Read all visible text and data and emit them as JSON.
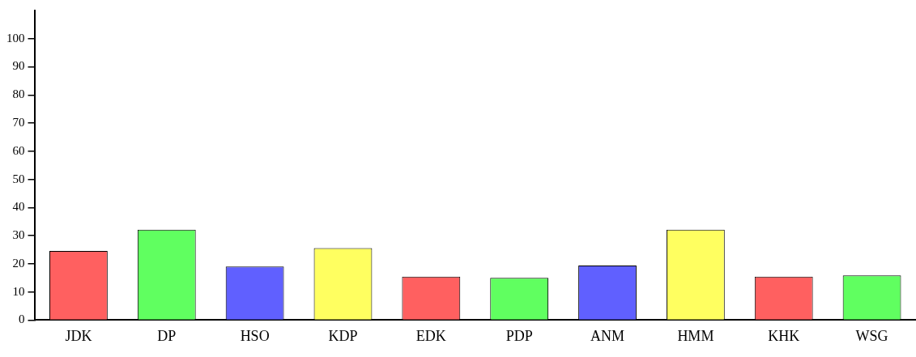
{
  "chart_data": {
    "type": "bar",
    "categories": [
      "JDK",
      "DP",
      "HSO",
      "KDP",
      "EDK",
      "PDP",
      "ANM",
      "HMM",
      "KHK",
      "WSG"
    ],
    "values": [
      24.6,
      32.1,
      19.0,
      25.6,
      15.4,
      15.0,
      19.4,
      32.1,
      15.4,
      15.9
    ],
    "colors": [
      "#ff6060",
      "#60ff60",
      "#6060ff",
      "#ffff60",
      "#ff6060",
      "#60ff60",
      "#6060ff",
      "#ffff60",
      "#ff6060",
      "#60ff60"
    ],
    "ylim": [
      0,
      110
    ],
    "yticks": [
      0,
      10,
      20,
      30,
      40,
      50,
      60,
      70,
      80,
      90,
      100
    ],
    "grid": false,
    "legend": false
  }
}
